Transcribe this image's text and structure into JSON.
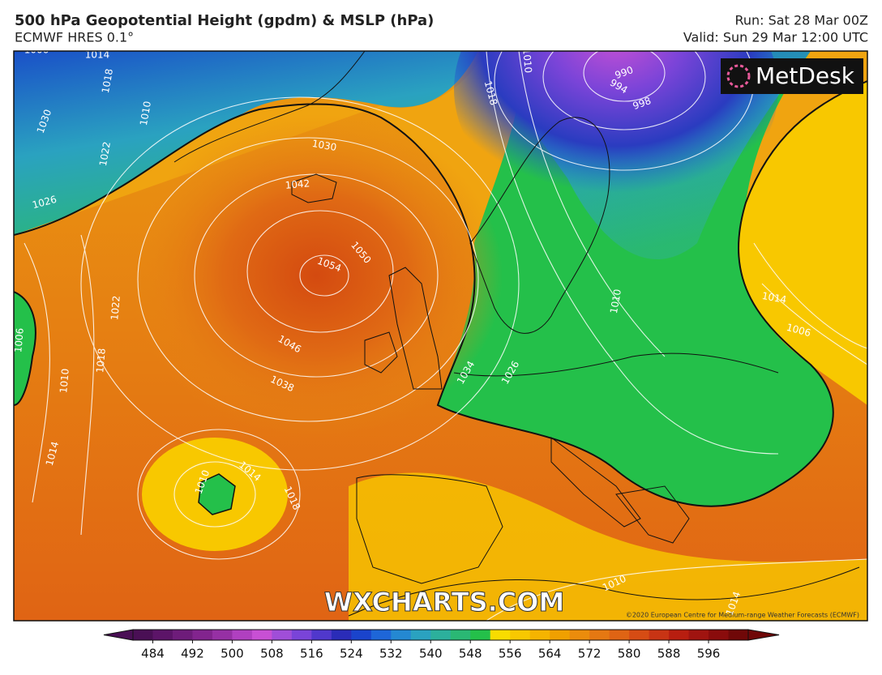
{
  "header": {
    "title": "500 hPa Geopotential Height (gpdm) & MSLP (hPa)",
    "subtitle": "ECMWF HRES 0.1°",
    "run": "Run: Sat 28 Mar 00Z",
    "valid": "Valid: Sun 29 Mar 12:00 UTC"
  },
  "map": {
    "logo": "MetDesk",
    "watermark": "WXCHARTS.COM",
    "copyright": "©2020 European Centre for Medium-range Weather Forecasts (ECMWF)",
    "isobar_labels": [
      1006,
      1014,
      1018,
      1010,
      1030,
      1022,
      1026,
      1042,
      1030,
      1050,
      1054,
      1046,
      1038,
      1022,
      1018,
      1010,
      1006,
      1014,
      1010,
      1014,
      1018,
      1034,
      1026,
      1018,
      1010,
      990,
      994,
      998,
      1010,
      1006,
      1014,
      1010,
      1014
    ]
  },
  "colorbar": {
    "lim": [
      480,
      604
    ],
    "ticks": [
      484,
      492,
      500,
      508,
      516,
      524,
      532,
      540,
      548,
      556,
      564,
      572,
      580,
      588,
      596
    ],
    "colors": [
      "#4a0f55",
      "#5c1468",
      "#6e1c7a",
      "#82248e",
      "#9630a4",
      "#b040c0",
      "#c850d4",
      "#a04ed8",
      "#7a44d8",
      "#5038cc",
      "#2a2cb8",
      "#1a44cc",
      "#1e66d8",
      "#2488d2",
      "#2aa2c0",
      "#2cb09c",
      "#2ab874",
      "#24c04a",
      "#f8dc00",
      "#f8c800",
      "#f5b400",
      "#f0a000",
      "#eb8c0c",
      "#e57812",
      "#df6414",
      "#d64c14",
      "#c83414",
      "#b81e10",
      "#a01410",
      "#8a0c0c",
      "#700808"
    ]
  }
}
